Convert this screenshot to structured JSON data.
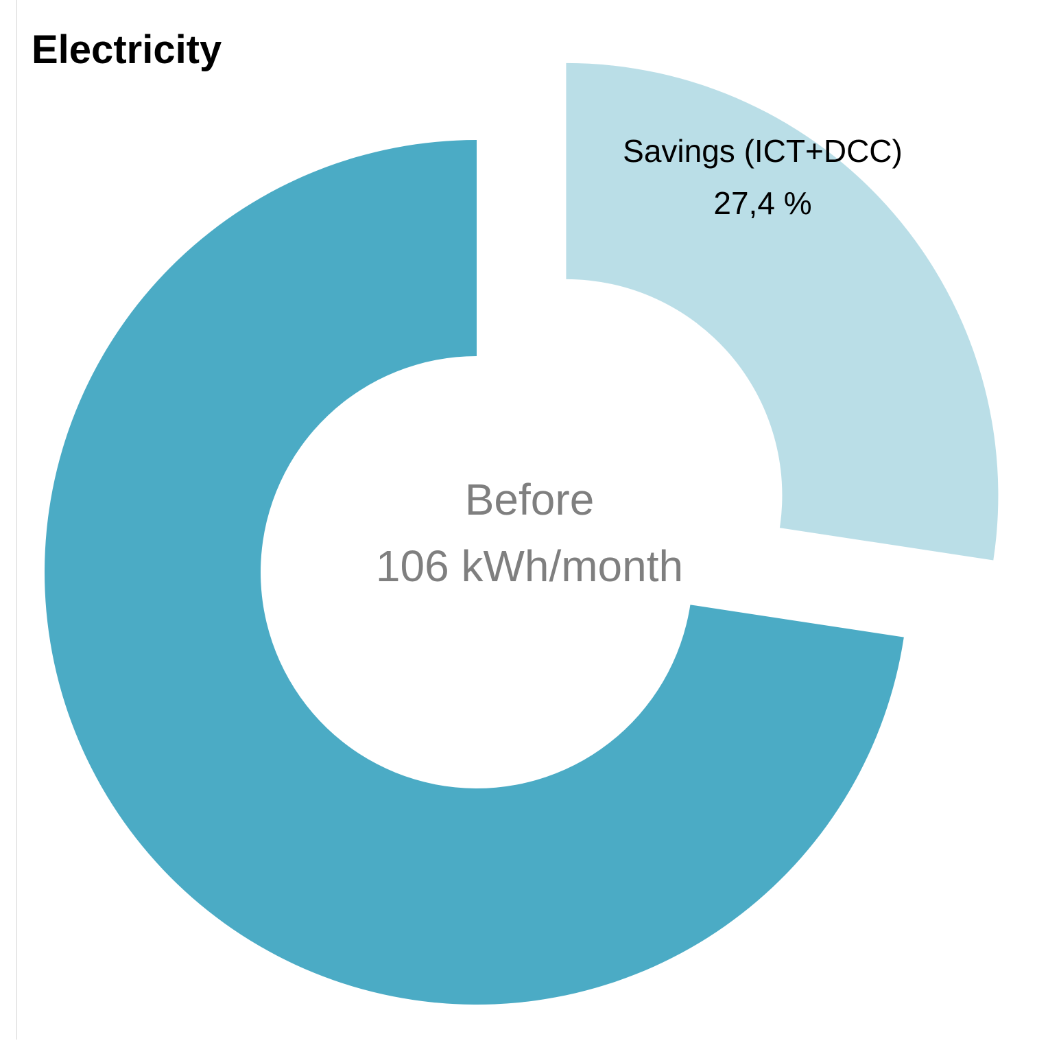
{
  "chart_data": {
    "type": "pie",
    "variant": "donut",
    "title": "Electricity",
    "center_label": {
      "line1": "Before",
      "line2": "106 kWh/month"
    },
    "slices": [
      {
        "name": "Savings (ICT+DCC)",
        "value": 27.4,
        "value_label": "27,4 %",
        "color": "#badee7",
        "exploded": true
      },
      {
        "name": "",
        "value": 72.6,
        "value_label": "",
        "color": "#4babc5",
        "exploded": false
      }
    ],
    "start_angle": "12 o'clock",
    "direction": "clockwise",
    "legend": "none"
  },
  "colors": {
    "title": "#000000",
    "center_label": "#7f7f7f",
    "slice_label": "#000000",
    "background": "#ffffff"
  }
}
